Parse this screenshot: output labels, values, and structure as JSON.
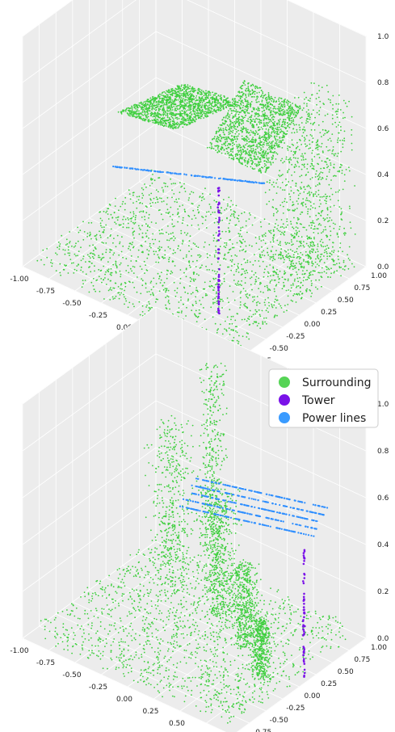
{
  "chart_data": [
    {
      "type": "scatter",
      "projection": "3d",
      "xlim": [
        -1.0,
        1.0
      ],
      "ylim": [
        -1.0,
        1.0
      ],
      "zlim": [
        0.0,
        1.0
      ],
      "x_ticks": [
        "-1.00",
        "-0.75",
        "-0.50",
        "-0.25",
        "0.00",
        "0.25",
        "0.50",
        "0.75",
        "1.00"
      ],
      "y_ticks": [
        "-1.00",
        "-0.75",
        "-0.50",
        "-0.25",
        "0.00",
        "0.25",
        "0.50",
        "0.75",
        "1.00"
      ],
      "z_ticks": [
        "0.0",
        "0.2",
        "0.4",
        "0.6",
        "0.8",
        "1.0"
      ],
      "grid": true,
      "series": [
        {
          "name": "Surrounding",
          "color": "#3ecf3e",
          "description": "ground points and two tilted roof planes, trees on the far side"
        },
        {
          "name": "Tower",
          "color": "#7a12e8",
          "description": "vertical column of points"
        },
        {
          "name": "Power lines",
          "color": "#2f8fff",
          "description": "thin line crossing the scene"
        }
      ]
    },
    {
      "type": "scatter",
      "projection": "3d",
      "xlim": [
        -1.0,
        1.0
      ],
      "ylim": [
        -1.0,
        1.0
      ],
      "zlim": [
        0.0,
        1.0
      ],
      "x_ticks": [
        "-1.00",
        "-0.75",
        "-0.50",
        "-0.25",
        "0.00",
        "0.25",
        "0.50",
        "0.75",
        "1.00"
      ],
      "y_ticks": [
        "-1.00",
        "-0.75",
        "-0.50",
        "-0.25",
        "0.00",
        "0.25",
        "0.50",
        "0.75",
        "1.00"
      ],
      "z_ticks": [
        "0.0",
        "0.2",
        "0.4",
        "0.6",
        "0.8",
        "1.0"
      ],
      "grid": true,
      "legend": {
        "placement": "top-right",
        "entries": [
          {
            "label": "Surrounding",
            "color": "#56d456"
          },
          {
            "label": "Tower",
            "color": "#7a12e8"
          },
          {
            "label": "Power lines",
            "color": "#3a9bff"
          }
        ]
      },
      "series": [
        {
          "name": "Surrounding",
          "color": "#3ecf3e",
          "description": "scattered ground points with tree clusters"
        },
        {
          "name": "Tower",
          "color": "#7a12e8",
          "description": "vertical column of points"
        },
        {
          "name": "Power lines",
          "color": "#2f8fff",
          "description": "several parallel wires crossing the scene"
        }
      ]
    }
  ]
}
